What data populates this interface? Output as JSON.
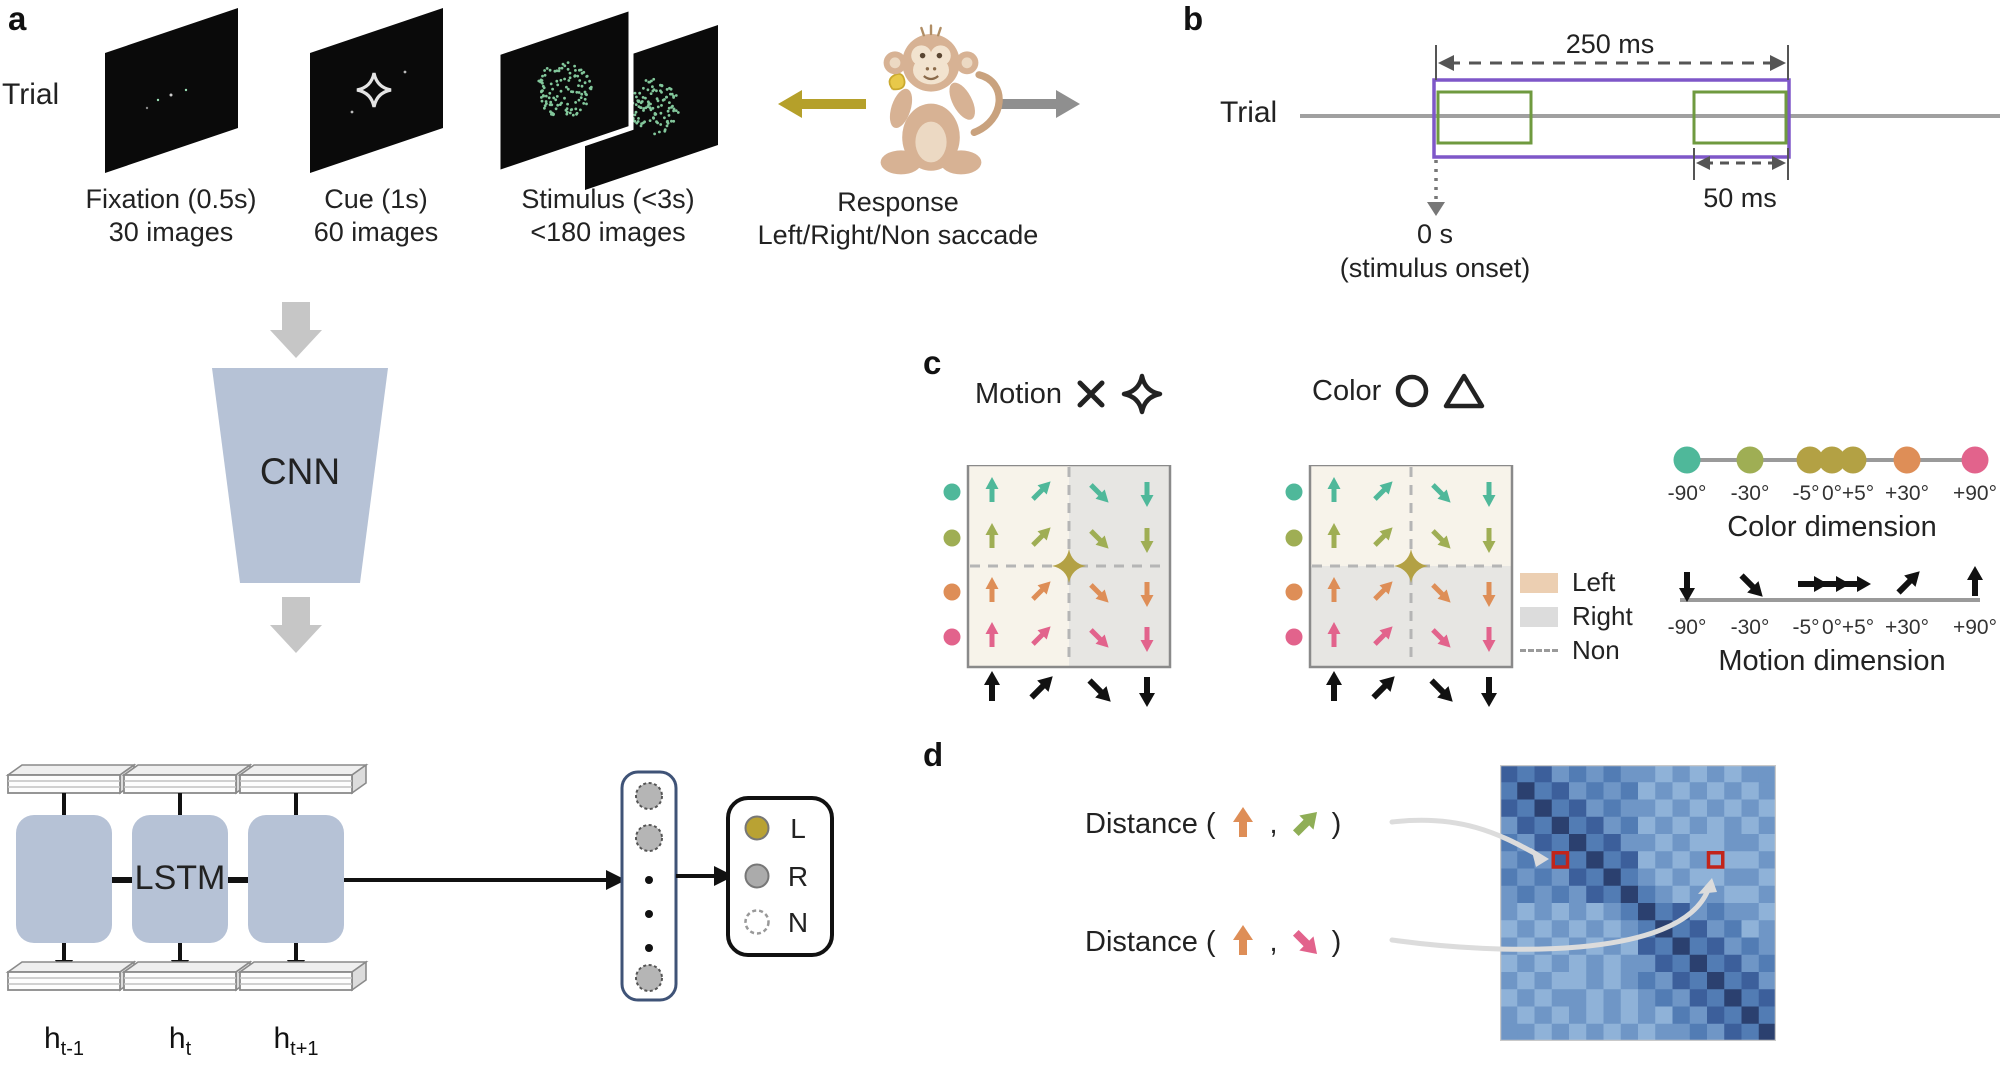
{
  "panel_a": {
    "label": "a",
    "trial_label": "Trial",
    "stages": [
      {
        "caption": "Fixation (0.5s)",
        "subcaption": "30 images"
      },
      {
        "caption": "Cue (1s)",
        "subcaption": "60 images"
      },
      {
        "caption": "Stimulus (<3s)",
        "subcaption": "<180 images"
      },
      {
        "caption": "Response",
        "subcaption": "Left/Right/Non saccade"
      }
    ],
    "saccade_arrows": {
      "left_color": "#b5a02a",
      "right_color": "#8f8f8f"
    }
  },
  "model": {
    "cnn_label": "CNN",
    "lstm_label": "LSTM",
    "block_color": "#b6c2d6",
    "hidden_states": [
      {
        "base": "h",
        "sub": "t-1"
      },
      {
        "base": "h",
        "sub": "t"
      },
      {
        "base": "h",
        "sub": "t+1"
      }
    ],
    "output_classes": [
      {
        "label": "L",
        "dot_color": "#b9a233",
        "dot_style": "filled"
      },
      {
        "label": "R",
        "dot_color": "#ababab",
        "dot_style": "filled"
      },
      {
        "label": "N",
        "dot_color": "#ffffff",
        "dot_style": "dashed"
      }
    ]
  },
  "panel_b": {
    "label": "b",
    "trial_label": "Trial",
    "total_duration": "250 ms",
    "pulse_duration": "50 ms",
    "onset": "0 s",
    "onset_note": "(stimulus onset)",
    "colors": {
      "window_outline": "#7e57c8",
      "pulse_outline": "#6f9a3f",
      "timeline": "#a0a0a0"
    }
  },
  "panel_c": {
    "label": "c",
    "contexts": [
      {
        "title": "Motion",
        "cues": [
          "x-cross",
          "four-point-star"
        ],
        "split": "vertical"
      },
      {
        "title": "Color",
        "cues": [
          "circle",
          "triangle"
        ],
        "split": "horizontal"
      }
    ],
    "row_colors": [
      "#4fb89a",
      "#9fae54",
      "#de8e57",
      "#e2638c"
    ],
    "column_dirs_deg": [
      -90,
      -45,
      45,
      90
    ],
    "cue_color": "#b3a144",
    "left_fill": "#f7f3ea",
    "right_fill": "#e7e6e3",
    "legend": [
      {
        "label": "Left",
        "swatch_color": "#eccfb2",
        "style": "fill"
      },
      {
        "label": "Right",
        "swatch_color": "#dcdcdc",
        "style": "fill"
      },
      {
        "label": "Non",
        "swatch_color": "#9a9a9a",
        "style": "dashed"
      }
    ],
    "color_dimension": {
      "title": "Color dimension",
      "ticks": [
        "-90°",
        "-30°",
        "-5°",
        "0°",
        "+5°",
        "+30°",
        "+90°"
      ],
      "dot_colors": [
        "#4fb89a",
        "#9fae54",
        "#b3a144",
        "#b3a144",
        "#b3a144",
        "#de8e57",
        "#e2638c"
      ]
    },
    "motion_dimension": {
      "title": "Motion dimension",
      "ticks": [
        "-90°",
        "-30°",
        "-5°",
        "0°",
        "+5°",
        "+30°",
        "+90°"
      ],
      "arrow_degs": [
        90,
        45,
        0,
        0,
        0,
        -45,
        -90
      ]
    }
  },
  "panel_d": {
    "label": "d",
    "distances": [
      {
        "prefix": "Distance (",
        "comma": ",",
        "suffix": ")",
        "arrow1": {
          "color": "#de8e57",
          "deg": -90,
          "name": "up"
        },
        "arrow2": {
          "color": "#8fae56",
          "deg": -45,
          "name": "up-right"
        }
      },
      {
        "prefix": "Distance (",
        "comma": ",",
        "suffix": ")",
        "arrow1": {
          "color": "#de8e57",
          "deg": -90,
          "name": "up"
        },
        "arrow2": {
          "color": "#e2638c",
          "deg": 45,
          "name": "down-right"
        }
      }
    ],
    "heatmap": {
      "palette": [
        "#a9c8e6",
        "#8fb2d8",
        "#6f96c6",
        "#527cb4",
        "#3c5f9b",
        "#2b406f"
      ],
      "highlight_color": "#c2241a",
      "highlights": [
        {
          "row": 5,
          "col": 3
        },
        {
          "row": 5,
          "col": 12
        }
      ],
      "grid": [
        [
          4,
          3,
          4,
          2,
          3,
          2,
          3,
          2,
          2,
          1,
          2,
          1,
          2,
          1,
          2,
          2
        ],
        [
          3,
          5,
          3,
          4,
          2,
          3,
          2,
          3,
          1,
          2,
          1,
          2,
          1,
          2,
          1,
          2
        ],
        [
          4,
          3,
          5,
          3,
          4,
          2,
          3,
          2,
          2,
          1,
          2,
          1,
          2,
          1,
          2,
          1
        ],
        [
          2,
          4,
          3,
          5,
          3,
          4,
          2,
          3,
          1,
          2,
          1,
          2,
          1,
          2,
          1,
          2
        ],
        [
          3,
          2,
          4,
          3,
          5,
          3,
          4,
          2,
          2,
          1,
          2,
          1,
          1,
          2,
          2,
          1
        ],
        [
          2,
          3,
          2,
          4,
          3,
          5,
          3,
          4,
          1,
          2,
          1,
          2,
          1,
          1,
          1,
          2
        ],
        [
          3,
          2,
          3,
          2,
          4,
          3,
          5,
          3,
          2,
          1,
          2,
          1,
          1,
          2,
          2,
          1
        ],
        [
          2,
          3,
          2,
          3,
          2,
          4,
          3,
          5,
          3,
          2,
          1,
          2,
          2,
          1,
          1,
          2
        ],
        [
          2,
          1,
          2,
          1,
          2,
          1,
          2,
          3,
          5,
          3,
          4,
          2,
          3,
          2,
          2,
          1
        ],
        [
          1,
          2,
          1,
          2,
          1,
          2,
          1,
          2,
          3,
          5,
          3,
          4,
          2,
          3,
          1,
          2
        ],
        [
          2,
          1,
          2,
          1,
          2,
          1,
          2,
          1,
          4,
          3,
          5,
          3,
          4,
          2,
          3,
          2
        ],
        [
          1,
          2,
          1,
          2,
          1,
          2,
          1,
          2,
          2,
          4,
          3,
          5,
          3,
          4,
          2,
          3
        ],
        [
          2,
          1,
          2,
          1,
          1,
          2,
          1,
          2,
          3,
          2,
          4,
          3,
          5,
          3,
          4,
          2
        ],
        [
          1,
          2,
          1,
          2,
          2,
          1,
          2,
          1,
          2,
          3,
          2,
          4,
          3,
          5,
          3,
          4
        ],
        [
          2,
          1,
          2,
          1,
          2,
          1,
          2,
          1,
          2,
          1,
          3,
          2,
          4,
          3,
          5,
          3
        ],
        [
          2,
          2,
          1,
          2,
          1,
          2,
          1,
          2,
          1,
          2,
          2,
          3,
          2,
          4,
          3,
          5
        ]
      ]
    }
  }
}
